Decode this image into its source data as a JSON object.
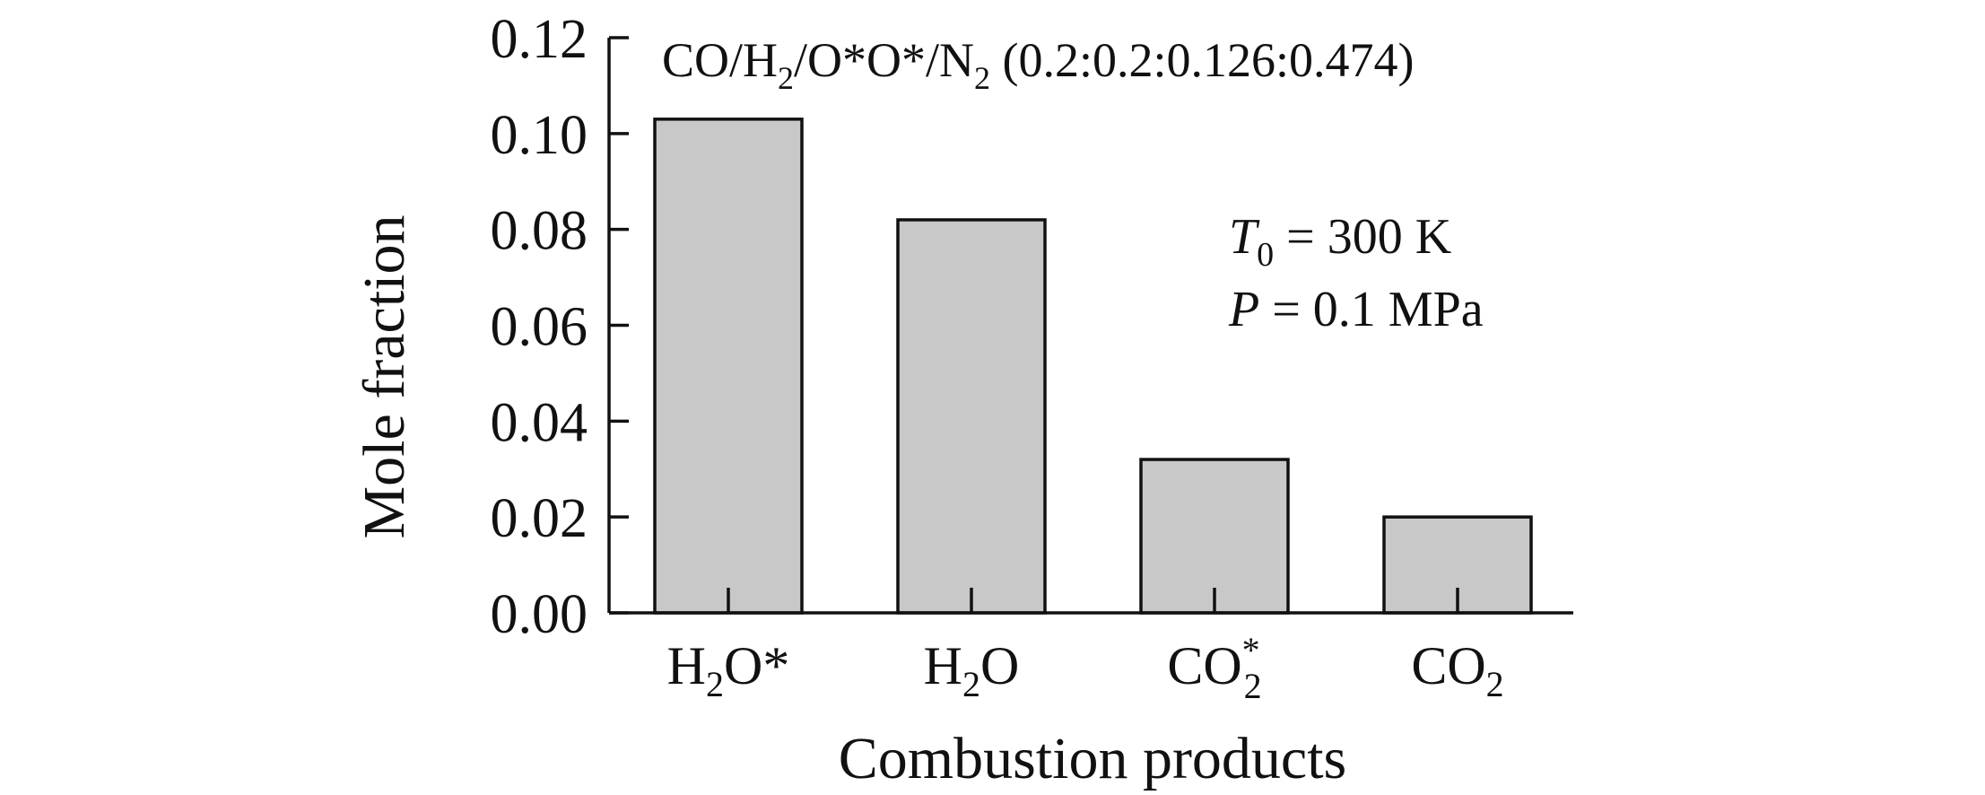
{
  "chart_data": {
    "type": "bar",
    "title_parts": {
      "co": "CO/H",
      "s1": "2",
      "o": "/O*O*/N",
      "s2": "2",
      "ratio": " (0.2:0.2:0.126:0.474)"
    },
    "annotation": {
      "t_var": "T",
      "t_sub": "0",
      "t_val": " = 300 K",
      "p_var": "P",
      "p_val": " = 0.1 MPa"
    },
    "xlabel": "Combustion products",
    "ylabel": "Mole fraction",
    "ylim": [
      0,
      0.12
    ],
    "yticks": [
      "0.00",
      "0.02",
      "0.04",
      "0.06",
      "0.08",
      "0.10",
      "0.12"
    ],
    "categories": [
      {
        "base": "H",
        "sub": "2",
        "rest": "O*",
        "sup": ""
      },
      {
        "base": "H",
        "sub": "2",
        "rest": "O",
        "sup": ""
      },
      {
        "base": "CO",
        "sub": "2",
        "rest": "",
        "sup": "*"
      },
      {
        "base": "CO",
        "sub": "2",
        "rest": "",
        "sup": ""
      }
    ],
    "values": [
      0.103,
      0.082,
      0.032,
      0.02
    ],
    "bar_color": "#c8c8c8",
    "grid": false,
    "legend": "none"
  }
}
